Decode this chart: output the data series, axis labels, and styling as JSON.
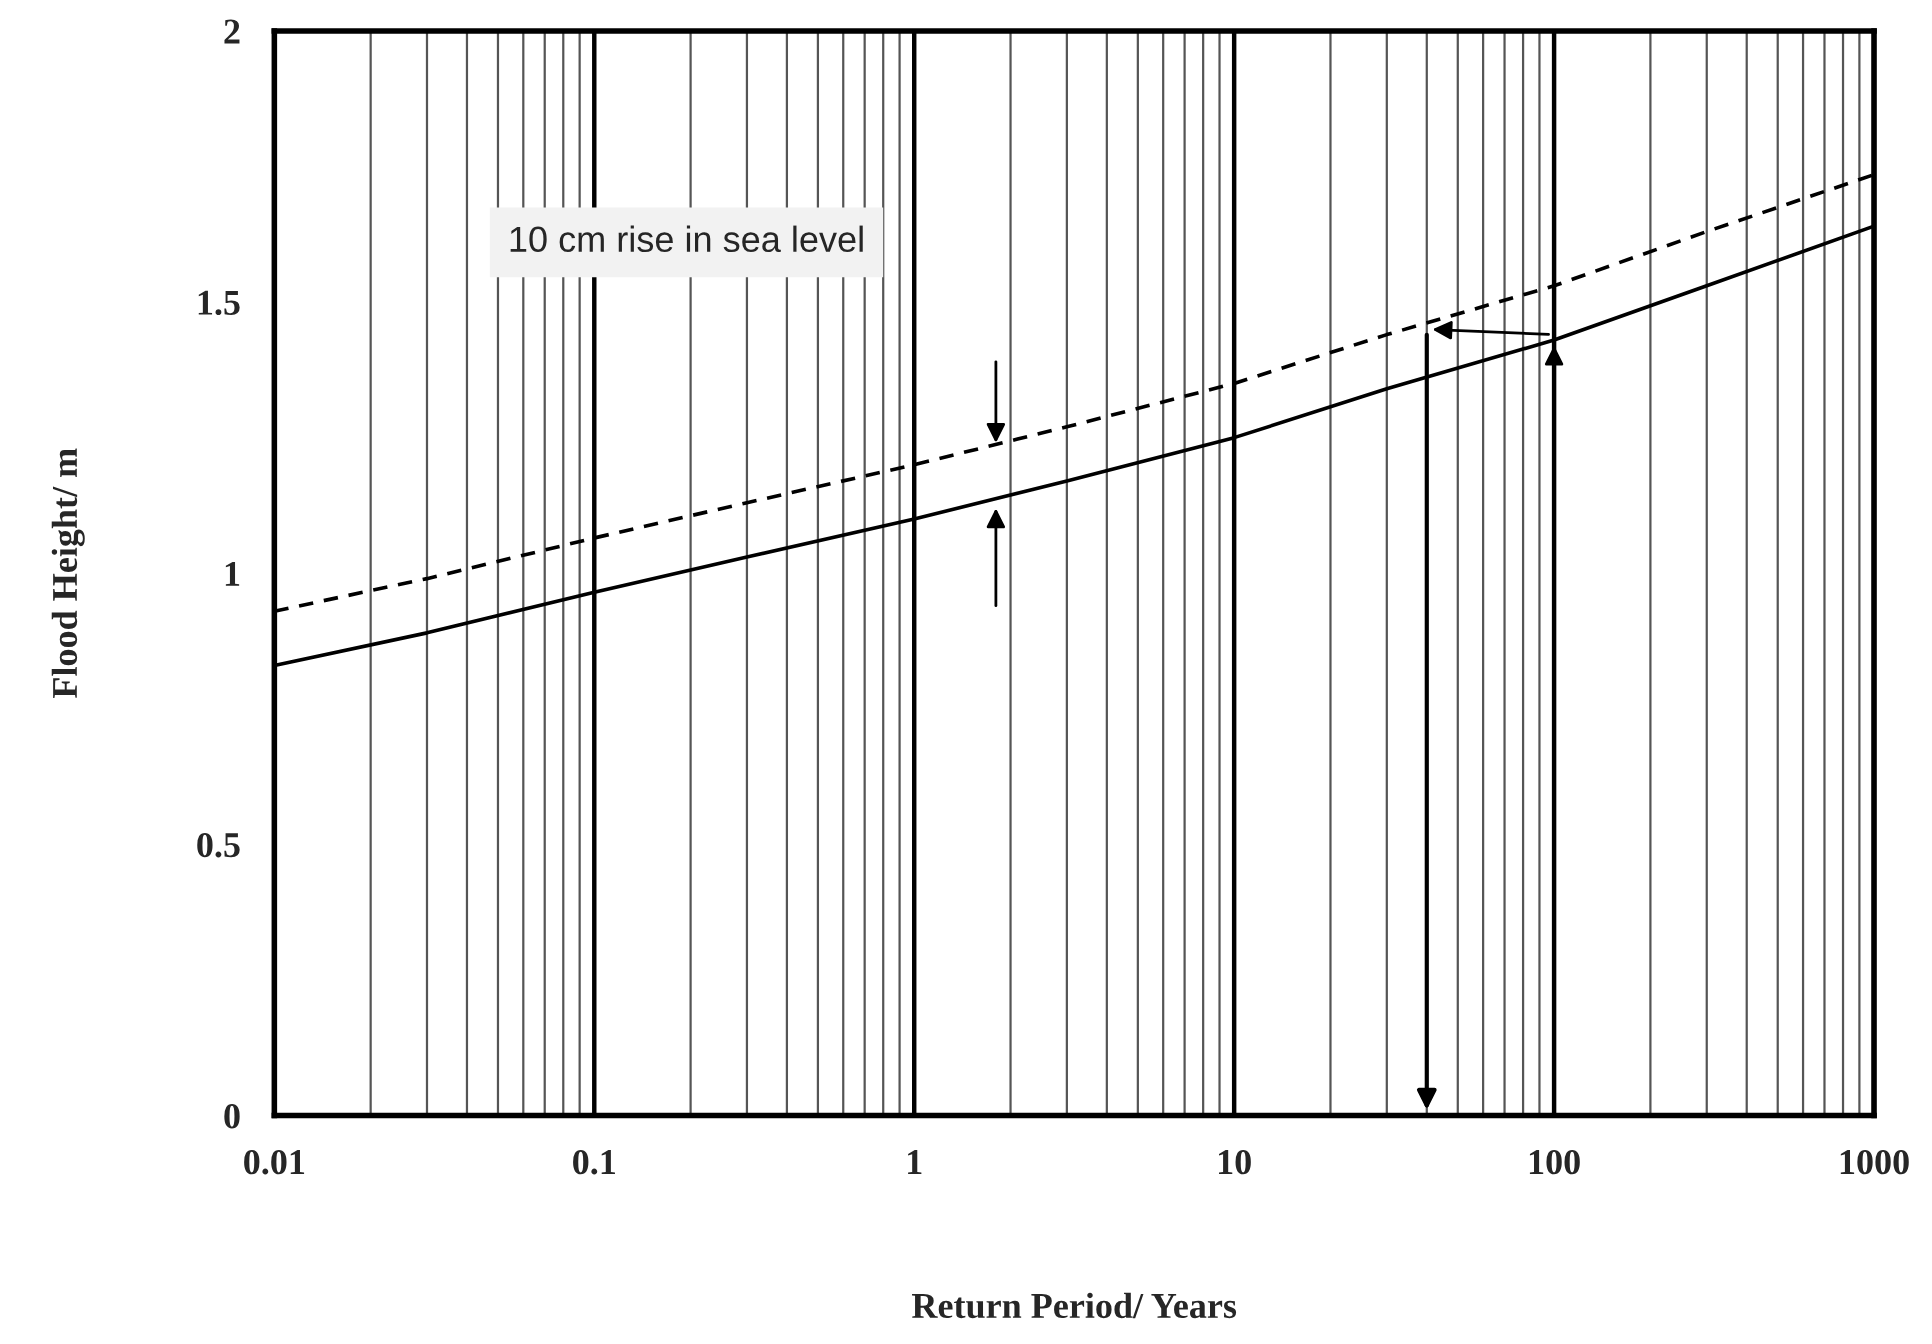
{
  "chart_data": {
    "type": "line",
    "xlabel": "Return Period/ Years",
    "ylabel": "Flood Height/ m",
    "x": [
      0.01,
      0.03,
      0.1,
      0.3,
      1,
      3,
      10,
      30,
      100,
      300,
      1000
    ],
    "series": [
      {
        "color": "#000000",
        "line_style": "solid",
        "values": [
          0.83,
          0.89,
          0.965,
          1.03,
          1.1,
          1.17,
          1.25,
          1.34,
          1.43,
          1.53,
          1.64
        ]
      },
      {
        "color": "#000000",
        "line_style": "dashed",
        "values": [
          0.93,
          0.99,
          1.065,
          1.13,
          1.2,
          1.27,
          1.35,
          1.44,
          1.53,
          1.63,
          1.735
        ]
      }
    ],
    "log": "x",
    "xlim": [
      0.01,
      1000
    ],
    "xticks": [
      0.01,
      0.1,
      1,
      10,
      100,
      1000
    ],
    "ylim": [
      0,
      2
    ],
    "yticks": [
      0,
      0.5,
      1,
      1.5,
      2
    ],
    "grid": "x",
    "annotations": [
      "10 cm rise in sea level"
    ]
  }
}
